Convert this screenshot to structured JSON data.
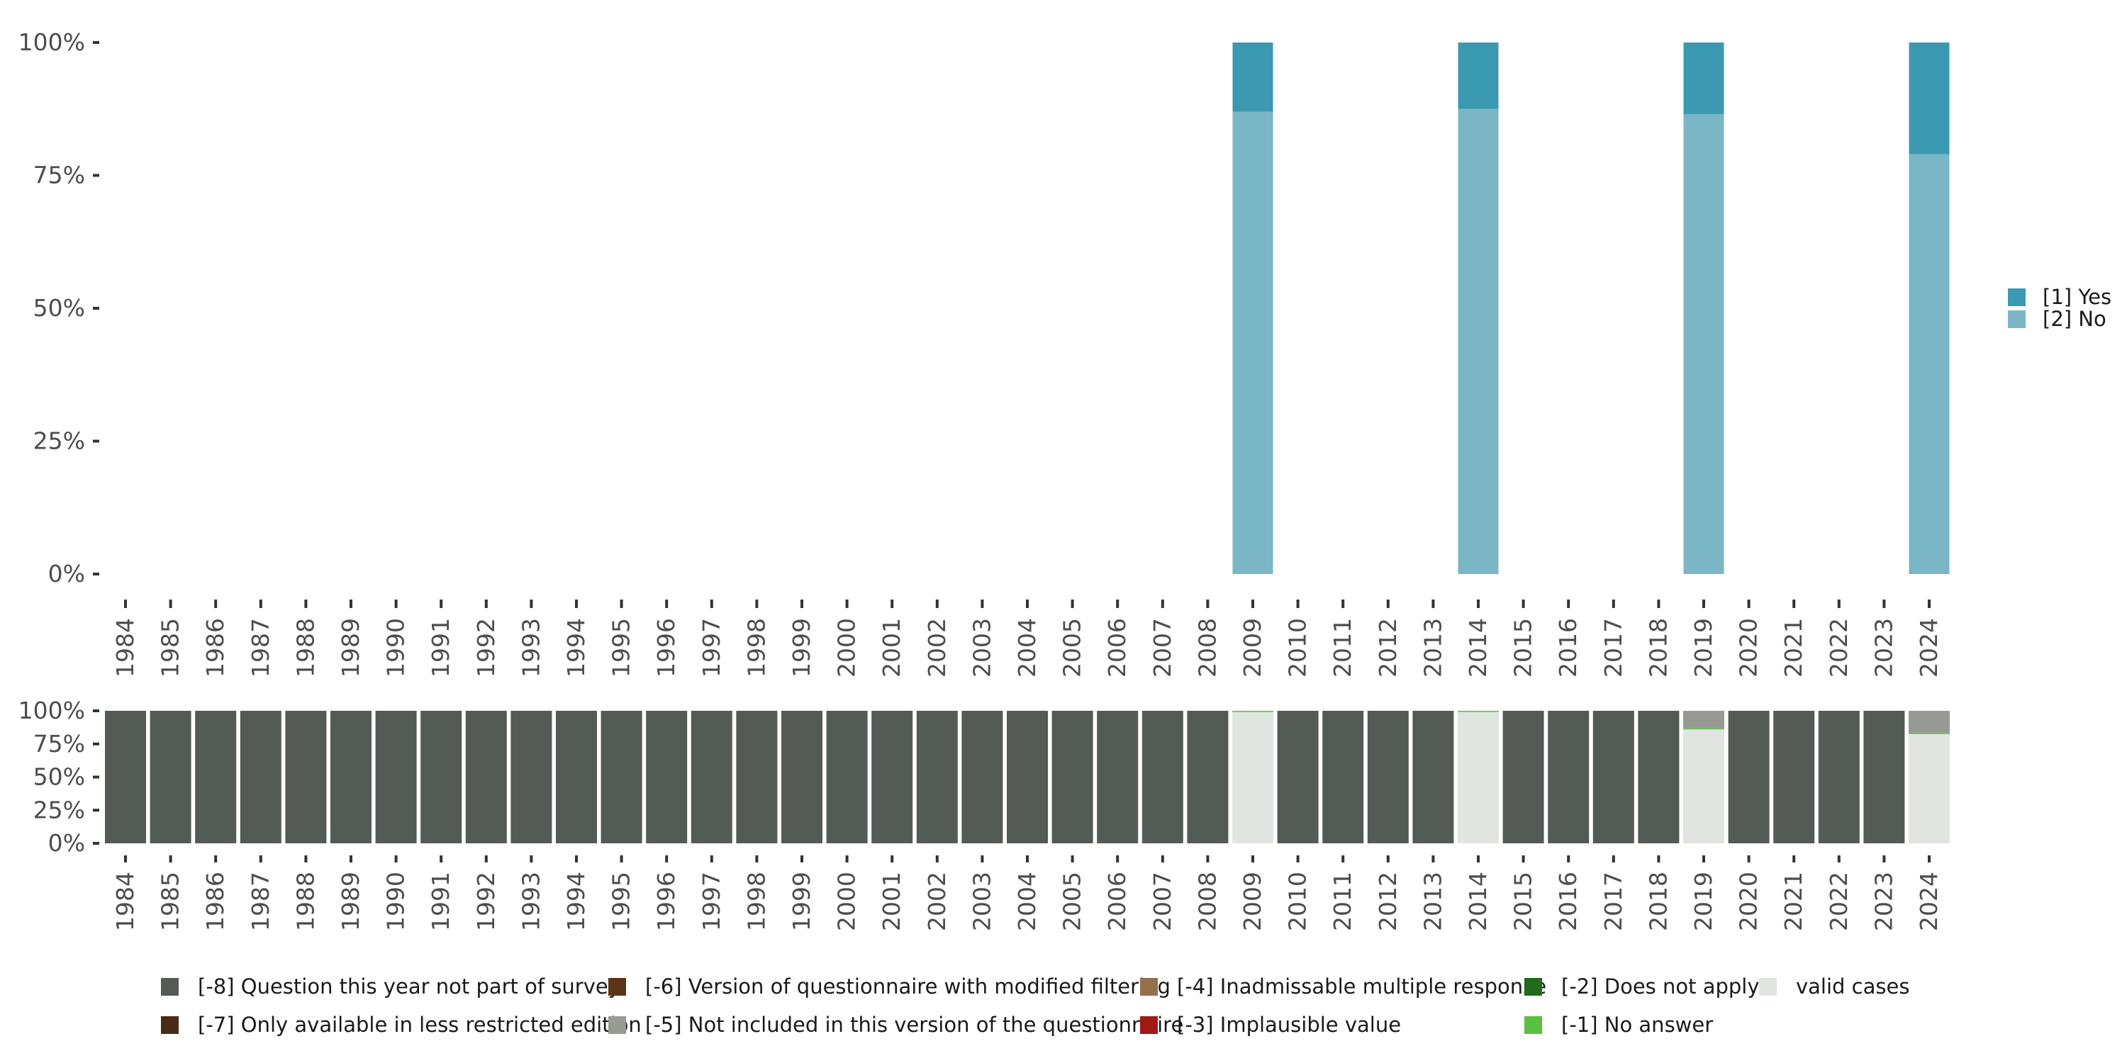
{
  "chart_data": [
    {
      "type": "bar",
      "stacked": true,
      "categories": [
        "1984",
        "1985",
        "1986",
        "1987",
        "1988",
        "1989",
        "1990",
        "1991",
        "1992",
        "1993",
        "1994",
        "1995",
        "1996",
        "1997",
        "1998",
        "1999",
        "2000",
        "2001",
        "2002",
        "2003",
        "2004",
        "2005",
        "2006",
        "2007",
        "2008",
        "2009",
        "2010",
        "2011",
        "2012",
        "2013",
        "2014",
        "2015",
        "2016",
        "2017",
        "2018",
        "2019",
        "2020",
        "2021",
        "2022",
        "2023",
        "2024"
      ],
      "ylim": [
        0,
        100
      ],
      "yticks": [
        "0%",
        "25%",
        "50%",
        "75%",
        "100%"
      ],
      "ytick_values": [
        0,
        25,
        50,
        75,
        100
      ],
      "legend_position": "right",
      "series": [
        {
          "name": "[2] No",
          "color": "#7ab6c6",
          "values": {
            "2009": 87,
            "2014": 87.5,
            "2019": 86.5,
            "2024": 79
          }
        },
        {
          "name": "[1] Yes",
          "color": "#3b99b1",
          "values": {
            "2009": 13,
            "2014": 12.5,
            "2019": 13.5,
            "2024": 21
          }
        }
      ]
    },
    {
      "type": "bar",
      "stacked": true,
      "ylim": [
        0,
        100
      ],
      "yticks": [
        "0%",
        "25%",
        "50%",
        "75%",
        "100%"
      ],
      "ytick_values": [
        0,
        25,
        50,
        75,
        100
      ],
      "legend_position": "bottom",
      "legend": [
        {
          "key": "m8",
          "name": "[-8] Question this year not part of survey",
          "color": "#545b55"
        },
        {
          "key": "m7",
          "name": "[-7] Only available in less restricted edition",
          "color": "#4a2c16"
        },
        {
          "key": "m6",
          "name": "[-6] Version of questionnaire with modified filtering",
          "color": "#5a3518"
        },
        {
          "key": "m5",
          "name": "[-5] Not included in this version of the questionnaire",
          "color": "#979b94"
        },
        {
          "key": "m4",
          "name": "[-4] Inadmissable multiple response",
          "color": "#94704b"
        },
        {
          "key": "m3",
          "name": "[-3] Implausible value",
          "color": "#a01a16"
        },
        {
          "key": "m2",
          "name": "[-2] Does not apply",
          "color": "#206a1a"
        },
        {
          "key": "m1",
          "name": "[-1] No answer",
          "color": "#5bbf3f"
        },
        {
          "key": "valid",
          "name": "valid cases",
          "color": "#e0e5e0"
        }
      ],
      "stack_order": [
        "valid",
        "m1",
        "m2",
        "m3",
        "m4",
        "m5",
        "m6",
        "m7",
        "m8"
      ],
      "values": {
        "default": {
          "m8": 100
        },
        "2009": {
          "valid": 99.6,
          "m1": 0.4
        },
        "2014": {
          "valid": 99.6,
          "m1": 0.4
        },
        "2019": {
          "valid": 86.3,
          "m1": 0.5,
          "m5": 13.2
        },
        "2024": {
          "valid": 82.5,
          "m1": 1.0,
          "m5": 16.5
        }
      }
    }
  ]
}
